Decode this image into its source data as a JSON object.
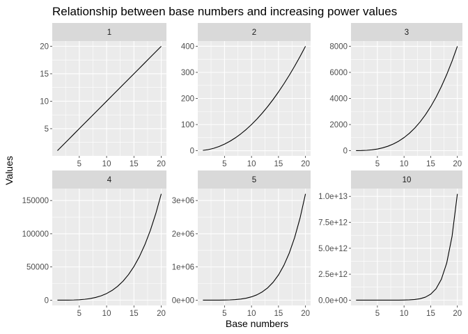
{
  "chart_data": {
    "type": "line",
    "title": "Relationship between base numbers and increasing power values",
    "xlabel": "Base numbers",
    "ylabel": "Values",
    "grid": true,
    "layout": "facet-wrap-2x3",
    "colors": {
      "panel_background": "#EBEBEB",
      "strip_background": "#D9D9D9",
      "gridline": "#FFFFFF",
      "line": "#000000",
      "tick_text": "#4D4D4D"
    },
    "x": [
      1,
      2,
      3,
      4,
      5,
      6,
      7,
      8,
      9,
      10,
      11,
      12,
      13,
      14,
      15,
      16,
      17,
      18,
      19,
      20
    ],
    "panels": [
      {
        "label": "1",
        "xlim": [
          0.05,
          20.95
        ],
        "ylim": [
          0.05,
          20.95
        ],
        "xticks": [
          5,
          10,
          15,
          20
        ],
        "xtick_labels": [
          "5",
          "10",
          "15",
          "20"
        ],
        "yticks": [
          5,
          10,
          15,
          20
        ],
        "ytick_labels": [
          "5",
          "10",
          "15",
          "20"
        ],
        "values": [
          1,
          2,
          3,
          4,
          5,
          6,
          7,
          8,
          9,
          10,
          11,
          12,
          13,
          14,
          15,
          16,
          17,
          18,
          19,
          20
        ]
      },
      {
        "label": "2",
        "xlim": [
          0.05,
          20.95
        ],
        "ylim": [
          -19.95,
          419.95
        ],
        "xticks": [
          5,
          10,
          15,
          20
        ],
        "xtick_labels": [
          "5",
          "10",
          "15",
          "20"
        ],
        "yticks": [
          0,
          100,
          200,
          300,
          400
        ],
        "ytick_labels": [
          "0",
          "100",
          "200",
          "300",
          "400"
        ],
        "values": [
          1,
          4,
          9,
          16,
          25,
          36,
          49,
          64,
          81,
          100,
          121,
          144,
          169,
          196,
          225,
          256,
          289,
          324,
          361,
          400
        ]
      },
      {
        "label": "3",
        "xlim": [
          0.05,
          20.95
        ],
        "ylim": [
          -399.95,
          8400.95
        ],
        "xticks": [
          5,
          10,
          15,
          20
        ],
        "xtick_labels": [
          "5",
          "10",
          "15",
          "20"
        ],
        "yticks": [
          0,
          2000,
          4000,
          6000,
          8000
        ],
        "ytick_labels": [
          "0",
          "2000",
          "4000",
          "6000",
          "8000"
        ],
        "values": [
          1,
          8,
          27,
          64,
          125,
          216,
          343,
          512,
          729,
          1000,
          1331,
          1728,
          2197,
          2744,
          3375,
          4096,
          4913,
          5832,
          6859,
          8000
        ]
      },
      {
        "label": "4",
        "xlim": [
          0.05,
          20.95
        ],
        "ylim": [
          -7999.95,
          167999.95
        ],
        "xticks": [
          5,
          10,
          15,
          20
        ],
        "xtick_labels": [
          "5",
          "10",
          "15",
          "20"
        ],
        "yticks": [
          0,
          50000,
          100000,
          150000
        ],
        "ytick_labels": [
          "0",
          "50000",
          "100000",
          "150000"
        ],
        "values": [
          1,
          16,
          81,
          256,
          625,
          1296,
          2401,
          4096,
          6561,
          10000,
          14641,
          20736,
          28561,
          38416,
          50625,
          65536,
          83521,
          104976,
          130321,
          160000
        ]
      },
      {
        "label": "5",
        "xlim": [
          0.05,
          20.95
        ],
        "ylim": [
          -160000,
          3360000
        ],
        "xticks": [
          5,
          10,
          15,
          20
        ],
        "xtick_labels": [
          "5",
          "10",
          "15",
          "20"
        ],
        "yticks": [
          0,
          1000000,
          2000000,
          3000000
        ],
        "ytick_labels": [
          "0e+00",
          "1e+06",
          "2e+06",
          "3e+06"
        ],
        "values": [
          1,
          32,
          243,
          1024,
          3125,
          7776,
          16807,
          32768,
          59049,
          100000,
          161051,
          248832,
          371293,
          537824,
          759375,
          1048576,
          1419857,
          1889568,
          2476099,
          3200000
        ]
      },
      {
        "label": "10",
        "xlim": [
          0.05,
          20.95
        ],
        "ylim": [
          -512000000000,
          10752000000000
        ],
        "xticks": [
          5,
          10,
          15,
          20
        ],
        "xtick_labels": [
          "5",
          "10",
          "15",
          "20"
        ],
        "yticks": [
          0,
          2500000000000,
          5000000000000,
          7500000000000,
          10000000000000
        ],
        "ytick_labels": [
          "0.0e+00",
          "2.5e+12",
          "5.0e+12",
          "7.5e+12",
          "1.0e+13"
        ],
        "values": [
          1,
          1024,
          59049,
          1048576,
          9765625,
          60466176,
          282475249,
          1073741824,
          3486784401,
          10000000000,
          25937424601,
          61917364224,
          137858491849,
          289254654976,
          576650390625,
          1099511627776,
          2015993900449,
          3570467226624,
          6131066257801,
          10240000000000
        ]
      }
    ]
  }
}
